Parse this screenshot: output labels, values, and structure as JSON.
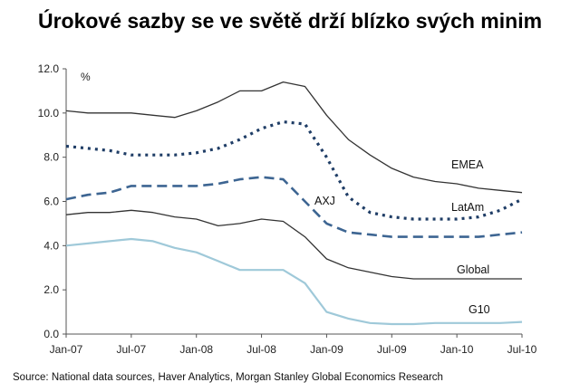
{
  "title": "Úrokové sazby se ve světě drží blízko svých minim",
  "source": "Source: National data sources, Haver Analytics, Morgan Stanley Global Economics Research",
  "chart_data": {
    "type": "line",
    "unit_label": "%",
    "ylim": [
      0,
      12
    ],
    "y_ticks": [
      "0.0",
      "2.0",
      "4.0",
      "6.0",
      "8.0",
      "10.0",
      "12.0"
    ],
    "x_ticks": [
      "Jan-07",
      "Jul-07",
      "Jan-08",
      "Jul-08",
      "Jan-09",
      "Jul-09",
      "Jan-10",
      "Jul-10"
    ],
    "grid": false,
    "x": [
      "2007-01",
      "2007-03",
      "2007-05",
      "2007-07",
      "2007-09",
      "2007-11",
      "2008-01",
      "2008-03",
      "2008-05",
      "2008-07",
      "2008-09",
      "2008-11",
      "2009-01",
      "2009-03",
      "2009-05",
      "2009-07",
      "2009-09",
      "2009-11",
      "2010-01",
      "2010-03",
      "2010-05",
      "2010-07"
    ],
    "series": [
      {
        "name": "EMEA",
        "color": "#333333",
        "style": "solid",
        "values": [
          10.1,
          10.0,
          10.0,
          10.0,
          9.9,
          9.8,
          10.1,
          10.5,
          11.0,
          11.0,
          11.4,
          11.2,
          9.9,
          8.8,
          8.1,
          7.5,
          7.1,
          6.9,
          6.8,
          6.6,
          6.5,
          6.4
        ]
      },
      {
        "name": "LatAm",
        "color": "#1f3d66",
        "style": "dotted",
        "values": [
          8.5,
          8.4,
          8.3,
          8.1,
          8.1,
          8.1,
          8.2,
          8.4,
          8.8,
          9.3,
          9.6,
          9.5,
          8.0,
          6.2,
          5.5,
          5.3,
          5.2,
          5.2,
          5.2,
          5.3,
          5.6,
          6.1
        ]
      },
      {
        "name": "AXJ",
        "color": "#3d6592",
        "style": "dashed",
        "values": [
          6.1,
          6.3,
          6.4,
          6.7,
          6.7,
          6.7,
          6.7,
          6.8,
          7.0,
          7.1,
          7.0,
          6.0,
          5.0,
          4.6,
          4.5,
          4.4,
          4.4,
          4.4,
          4.4,
          4.4,
          4.5,
          4.6
        ]
      },
      {
        "name": "Global",
        "color": "#333333",
        "style": "solid",
        "values": [
          5.4,
          5.5,
          5.5,
          5.6,
          5.5,
          5.3,
          5.2,
          4.9,
          5.0,
          5.2,
          5.1,
          4.4,
          3.4,
          3.0,
          2.8,
          2.6,
          2.5,
          2.5,
          2.5,
          2.5,
          2.5,
          2.5
        ]
      },
      {
        "name": "G10",
        "color": "#9fc9d9",
        "style": "solid",
        "values": [
          4.0,
          4.1,
          4.2,
          4.3,
          4.2,
          3.9,
          3.7,
          3.3,
          2.9,
          2.9,
          2.9,
          2.3,
          1.0,
          0.7,
          0.5,
          0.45,
          0.45,
          0.5,
          0.5,
          0.5,
          0.5,
          0.55
        ]
      }
    ]
  }
}
